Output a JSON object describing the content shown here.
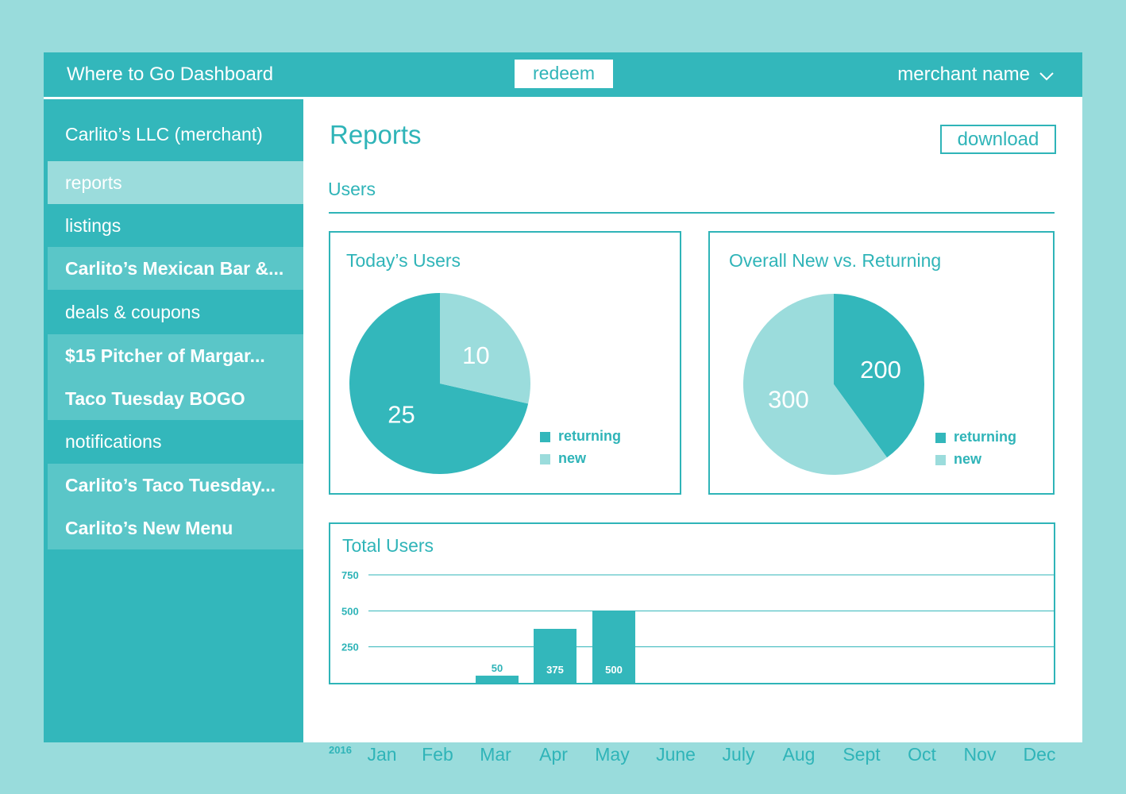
{
  "header": {
    "app_title": "Where to Go Dashboard",
    "redeem_label": "redeem",
    "merchant_menu_label": "merchant name"
  },
  "sidebar": {
    "items": [
      {
        "label": "Carlito’s LLC (merchant)",
        "kind": "merchant"
      },
      {
        "label": "reports",
        "kind": "active"
      },
      {
        "label": "listings",
        "kind": "section"
      },
      {
        "label": "Carlito’s Mexican Bar &...",
        "kind": "sub"
      },
      {
        "label": "deals & coupons",
        "kind": "section"
      },
      {
        "label": "$15 Pitcher of Margar...",
        "kind": "sub"
      },
      {
        "label": "Taco Tuesday BOGO",
        "kind": "sub"
      },
      {
        "label": "notifications",
        "kind": "section"
      },
      {
        "label": "Carlito’s Taco Tuesday...",
        "kind": "sub"
      },
      {
        "label": "Carlito’s New Menu",
        "kind": "sub"
      }
    ]
  },
  "main": {
    "title": "Reports",
    "download_label": "download",
    "users_tab_label": "Users"
  },
  "colors": {
    "returning": "#33b7bb",
    "new": "#9bdcdc",
    "accent": "#2fb4b8"
  },
  "chart_data": [
    {
      "type": "pie",
      "title": "Today’s Users",
      "labels": [
        "returning",
        "new"
      ],
      "values": [
        25,
        10
      ],
      "legend": "right"
    },
    {
      "type": "pie",
      "title": "Overall New vs. Returning",
      "labels": [
        "returning",
        "new"
      ],
      "values": [
        200,
        300
      ],
      "legend": "right"
    },
    {
      "type": "bar",
      "title": "Total Users",
      "year_label": "2016",
      "categories": [
        "Jan",
        "Feb",
        "Mar",
        "Apr",
        "May",
        "June",
        "July",
        "Aug",
        "Sept",
        "Oct",
        "Nov",
        "Dec"
      ],
      "values": [
        null,
        null,
        50,
        375,
        500,
        null,
        null,
        null,
        null,
        null,
        null,
        null
      ],
      "yticks": [
        250,
        500,
        750
      ],
      "ylim": [
        0,
        750
      ],
      "grid": true
    }
  ]
}
